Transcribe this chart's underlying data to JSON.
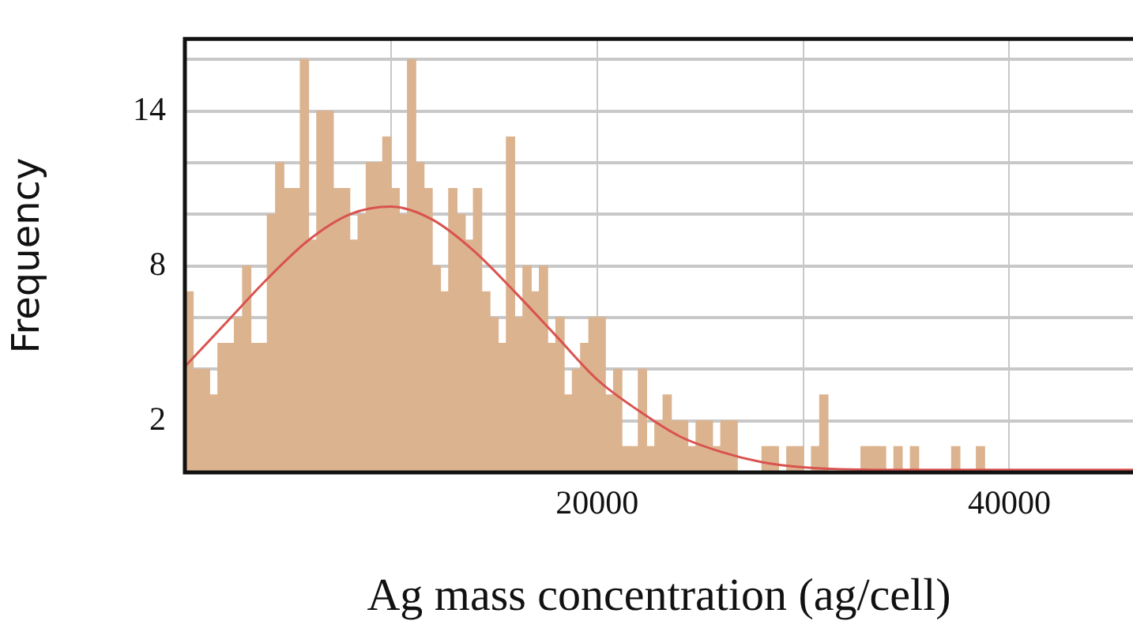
{
  "chart_data": {
    "type": "histogram",
    "xlabel": "Ag mass concentration (ag/cell)",
    "ylabel": "Frequency",
    "bins": [
      0,
      400,
      800,
      1200,
      1600,
      2000,
      2400,
      2800,
      3200,
      3600,
      4000,
      4400,
      4800,
      5200,
      5600,
      6000,
      6400,
      6800,
      7200,
      7600,
      8000,
      8400,
      8800,
      9200,
      9600,
      10000,
      10400,
      10800,
      11200,
      11600,
      12000,
      12400,
      12800,
      13200,
      13600,
      14000,
      14400,
      14800,
      15200,
      15600,
      16000,
      16400,
      16800,
      17200,
      17600,
      18000,
      18400,
      18800,
      19200,
      19600,
      20000,
      20400,
      20800,
      21200,
      21600,
      22000,
      22400,
      22800,
      23200,
      23600,
      24000,
      24400,
      24800,
      25200,
      25600,
      26000,
      26400,
      26800,
      27200,
      27600,
      28000,
      28400,
      28800,
      29200,
      29600,
      30000,
      30400,
      30800,
      31200,
      31600,
      32000,
      32400,
      32800,
      33200,
      33600,
      34000,
      34400,
      34800,
      35200,
      35600,
      36000,
      36400,
      36800,
      37200,
      37600,
      38000,
      38400,
      38800,
      39200,
      39600,
      40000,
      40400,
      40800,
      41200,
      41600,
      42000,
      42400,
      42800,
      43200,
      43600,
      44000,
      44400,
      44800,
      45200,
      45600,
      46000
    ],
    "values": [
      7,
      4,
      4,
      3,
      5,
      5,
      6,
      8,
      5,
      5,
      10,
      12,
      11,
      11,
      16,
      9,
      14,
      14,
      11,
      11,
      9,
      10,
      12,
      12,
      13,
      11,
      10,
      16,
      12,
      11,
      8,
      7,
      11,
      10,
      9,
      11,
      7,
      6,
      5,
      13,
      6,
      8,
      7,
      8,
      5,
      6,
      3,
      4,
      5,
      6,
      6,
      3,
      4,
      1,
      1,
      4,
      1,
      2,
      3,
      2,
      2,
      1,
      2,
      2,
      1,
      2,
      2,
      0,
      0,
      0,
      1,
      1,
      0,
      1,
      1,
      0,
      1,
      3,
      0,
      0,
      0,
      0,
      1,
      1,
      1,
      0,
      1,
      0,
      1,
      0,
      0,
      0,
      0,
      1,
      0,
      0,
      1,
      0,
      0,
      0,
      0,
      0,
      0,
      0,
      0,
      0,
      0,
      0,
      0,
      0,
      0,
      0,
      0,
      0,
      0
    ],
    "color": "#dcb38f",
    "series": [
      {
        "type": "line",
        "color": "#d9534f",
        "marker": "none",
        "x": [
          0,
          2000,
          4000,
          6000,
          8000,
          10000,
          12000,
          14000,
          16000,
          18000,
          20000,
          22000,
          24000,
          26000,
          28000,
          30000,
          34000,
          46000
        ],
        "values": [
          4.1,
          5.8,
          7.5,
          9.0,
          10.0,
          10.3,
          9.8,
          8.6,
          7.0,
          5.3,
          3.6,
          2.4,
          1.4,
          0.8,
          0.4,
          0.2,
          0.1,
          0.1
        ]
      }
    ],
    "xlim": [
      0,
      46000
    ],
    "xticks": [
      {
        "value": 10000,
        "label": null
      },
      20000,
      {
        "value": 30000,
        "label": null
      },
      40000
    ],
    "ylim": [
      0,
      16.8
    ],
    "yticks": [
      2,
      {
        "value": 4,
        "label": null
      },
      {
        "value": 6,
        "label": null
      },
      8,
      {
        "value": 10,
        "label": null
      },
      {
        "value": 12,
        "label": null
      },
      14,
      {
        "value": 16,
        "label": null
      }
    ],
    "grid": true,
    "legend": false
  }
}
